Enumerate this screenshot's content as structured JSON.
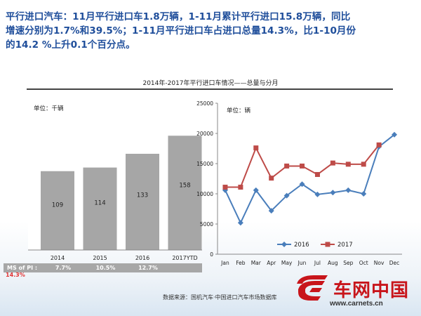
{
  "headline": {
    "line1": "平行进口汽车：11月平行进口车1.8万辆，1-11月累计平行进口15.8万辆，同比",
    "line2": "增速分别为1.7%和39.5%；1-11月平行进口车占进口总量14.3%，比1-10月份",
    "line3": "的14.2 %上升0.1个百分点。"
  },
  "chart_title": "2014年-2017年平行进口车情况——总量与分月",
  "chart_data": [
    {
      "type": "bar",
      "unit_label": "单位：千辆",
      "categories": [
        "2014",
        "2015",
        "2016",
        "2017YTD"
      ],
      "values": [
        109,
        114,
        133,
        158
      ],
      "ylim": [
        0,
        200
      ],
      "bar_color": "#a6a6a6",
      "ms_label": "MS of PI :",
      "ms_values": [
        "7.7%",
        "10.5%",
        "12.7%",
        "14.3%"
      ]
    },
    {
      "type": "line",
      "unit_label": "单位：辆",
      "x": [
        "Jan",
        "Feb",
        "Mar",
        "Apr",
        "May",
        "Jun",
        "Jul",
        "Aug",
        "Sep",
        "Oct",
        "Nov",
        "Dec"
      ],
      "ylim": [
        0,
        25000
      ],
      "yticks": [
        "0",
        "5000",
        "10000",
        "15000",
        "20000",
        "25000"
      ],
      "grid": false,
      "legend_position": "lower-middle",
      "series": [
        {
          "name": "2016",
          "color": "#4a7ebb",
          "marker": "diamond",
          "values": [
            10600,
            5200,
            10600,
            7200,
            9700,
            11600,
            9900,
            10200,
            10600,
            10000,
            17800,
            19800
          ]
        },
        {
          "name": "2017",
          "color": "#be4b48",
          "marker": "square",
          "values": [
            11100,
            11100,
            17600,
            12600,
            14600,
            14600,
            13200,
            15100,
            14900,
            14900,
            18100,
            null
          ]
        }
      ]
    }
  ],
  "source": "数据来源：国机汽车·中国进口汽车市场数据库",
  "logo": {
    "name": "车网中国",
    "url": "www.carnets.cn"
  },
  "colors": {
    "headline": "#1f4e9b",
    "brand_red": "#c8151b"
  }
}
